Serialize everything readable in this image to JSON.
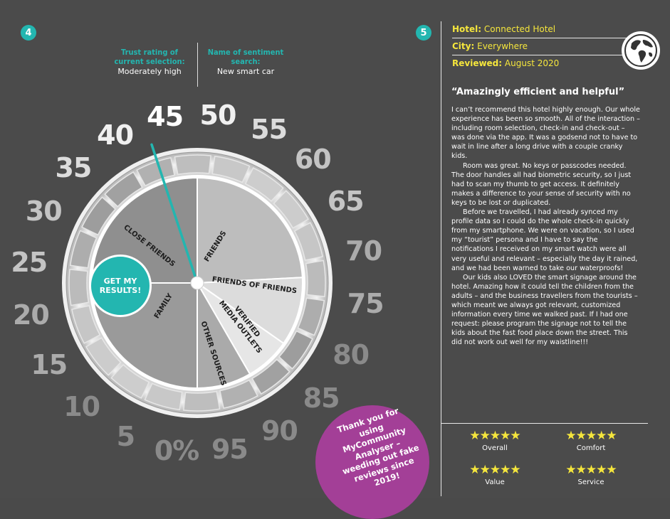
{
  "left_panel": {
    "badge": "4",
    "trust_label": "Trust rating of current selection:",
    "trust_value": "Moderately high",
    "search_label": "Name of sentiment search:",
    "search_value": "New smart car",
    "get_results": "GET MY RESULTS!",
    "dial_numbers": [
      "0%",
      "5",
      "10",
      "15",
      "20",
      "25",
      "30",
      "35",
      "40",
      "45",
      "50",
      "55",
      "60",
      "65",
      "70",
      "75",
      "80",
      "85",
      "90",
      "95"
    ],
    "needle_value": 43,
    "sectors": [
      "CLOSE FRIENDS",
      "FRIENDS",
      "FRIENDS OF FRIENDS",
      "VERIFIED MEDIA OUTLETS",
      "OTHER SOURCES",
      "FAMILY"
    ],
    "promo": "Thank you for using MyCommunity Analyser – weeding out fake reviews since 2019!"
  },
  "right_panel": {
    "badge": "5",
    "hotel_label": "Hotel:",
    "hotel_value": "Connected Hotel",
    "city_label": "City:",
    "city_value": "Everywhere",
    "reviewed_label": "Reviewed:",
    "reviewed_value": "August 2020",
    "icon": "globe-icon",
    "quote": "“Amazingly efficient and helpful”",
    "paragraphs": [
      "I can’t recommend this hotel highly enough. Our whole experience has been so smooth. All of the interaction – including room selection, check-in and check-out – was done via the app. It was a godsend not to have to wait in line after a long drive with a couple cranky kids.",
      "Room was great. No keys or passcodes needed. The door handles all had biometric security, so I just had to scan my thumb to get access. It definitely makes a difference to your sense of security with no keys to be lost or duplicated.",
      "Before we travelled, I had already synced my profile data so I could do the whole check-in quickly from my smartphone. We were on vacation, so I used my “tourist” persona and I have to say the notifications I received on my smart watch were all very useful and relevant – especially the day it rained, and we had been warned to take our waterproofs!",
      "Our kids also LOVED the smart signage around the hotel. Amazing how it could tell the children from the adults – and the business travellers from the tourists – which meant we always got relevant, customized information every time we walked past. If I had one request: please program the signage not to tell the kids about the fast food place down the street. This did not work out well for my waistline!!!"
    ],
    "ratings": [
      {
        "label": "Overall",
        "stars": "★★★★★",
        "score": 5
      },
      {
        "label": "Comfort",
        "stars": "★★★★★",
        "score": 5
      },
      {
        "label": "Value",
        "stars": "★★★★★",
        "score": 5
      },
      {
        "label": "Service",
        "stars": "★★★★★",
        "score": 5
      }
    ]
  },
  "colors": {
    "background": "#4b4b4b",
    "accent_teal": "#23b6b0",
    "accent_yellow": "#f5e63c",
    "promo_purple": "#a33f97"
  }
}
